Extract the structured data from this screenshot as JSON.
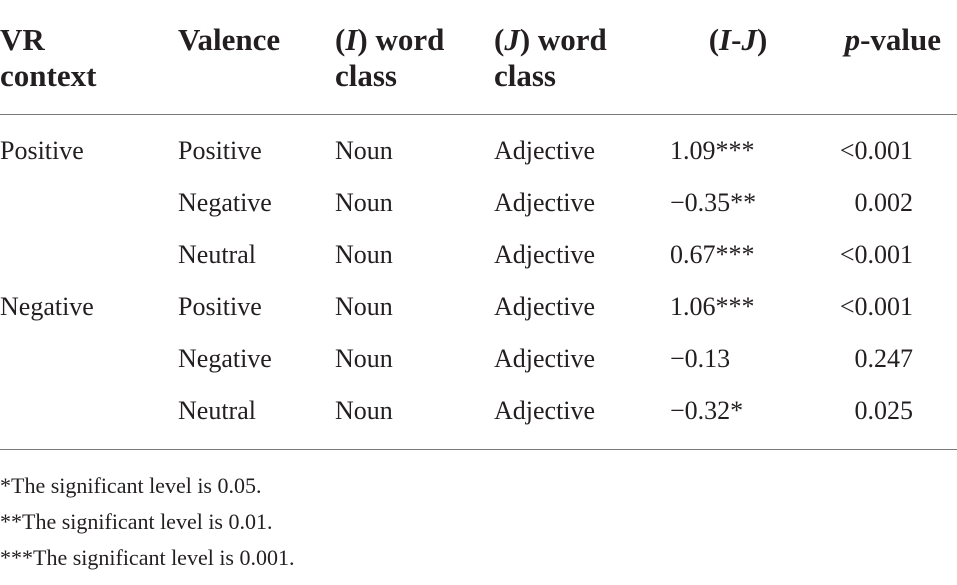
{
  "headers": {
    "vr_context": [
      "VR",
      "context"
    ],
    "valence": "Valence",
    "i_word_class": {
      "paren_open": "(",
      "var": "I",
      "paren_close": ")",
      "rest": " word",
      "line2": "class"
    },
    "j_word_class": {
      "paren_open": "(",
      "var": "J",
      "paren_close": ")",
      "rest": " word",
      "line2": "class"
    },
    "diff": {
      "open": "(",
      "i": "I",
      "dash": "-",
      "j": "J",
      "close": ")"
    },
    "pvalue": {
      "p": "p",
      "rest": "-value"
    }
  },
  "rows": [
    {
      "vr_context": "Positive",
      "valence": "Positive",
      "i_class": "Noun",
      "j_class": "Adjective",
      "diff": "1.09***",
      "p": "<0.001"
    },
    {
      "vr_context": "",
      "valence": "Negative",
      "i_class": "Noun",
      "j_class": "Adjective",
      "diff": "−0.35**",
      "p": "0.002"
    },
    {
      "vr_context": "",
      "valence": "Neutral",
      "i_class": "Noun",
      "j_class": "Adjective",
      "diff": "0.67***",
      "p": "<0.001"
    },
    {
      "vr_context": "Negative",
      "valence": "Positive",
      "i_class": "Noun",
      "j_class": "Adjective",
      "diff": "1.06***",
      "p": "<0.001"
    },
    {
      "vr_context": "",
      "valence": "Negative",
      "i_class": "Noun",
      "j_class": "Adjective",
      "diff": "−0.13",
      "p": "0.247"
    },
    {
      "vr_context": "",
      "valence": "Neutral",
      "i_class": "Noun",
      "j_class": "Adjective",
      "diff": "−0.32*",
      "p": "0.025"
    }
  ],
  "footnotes": [
    "*The significant level is 0.05.",
    "**The significant level is 0.01.",
    "***The significant level is 0.001."
  ]
}
